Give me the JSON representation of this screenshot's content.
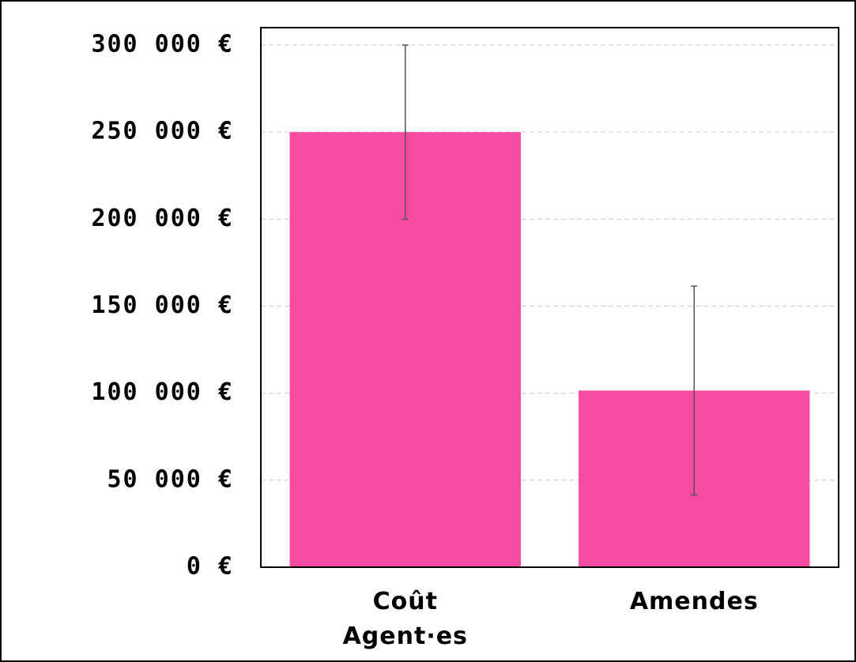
{
  "chart_data": {
    "type": "bar",
    "categories": [
      "Coût Agent·es",
      "Amendes"
    ],
    "values": [
      250000,
      101500
    ],
    "errors": [
      50000,
      60000
    ],
    "color": "#f74ba3",
    "ylim": [
      0,
      310000
    ],
    "yticks": [
      {
        "value": 0,
        "label": "0 €"
      },
      {
        "value": 50000,
        "label": "50 000 €"
      },
      {
        "value": 100000,
        "label": "100 000 €"
      },
      {
        "value": 150000,
        "label": "150 000 €"
      },
      {
        "value": 200000,
        "label": "200 000 €"
      },
      {
        "value": 250000,
        "label": "250 000 €"
      },
      {
        "value": 300000,
        "label": "300 000 €"
      }
    ],
    "grid": true
  }
}
